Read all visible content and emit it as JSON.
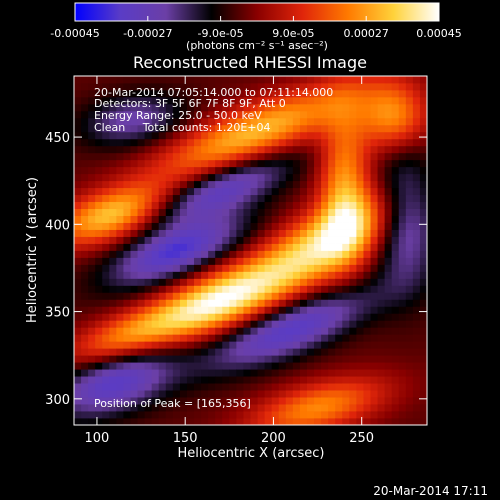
{
  "colorbar": {
    "ticks": [
      "-0.00045",
      "-0.00027",
      "-9.0e-05",
      "9.0e-05",
      "0.00027",
      "0.00045"
    ],
    "label": "(photons cm⁻² s⁻¹ asec⁻²)",
    "stops": [
      "#0000ff",
      "#5a3cc6",
      "#6b3fa6",
      "#000000",
      "#8a0000",
      "#e0250a",
      "#ff7a00",
      "#ffd23a",
      "#ffffff"
    ]
  },
  "chart_data": {
    "type": "heatmap",
    "title": "Reconstructed RHESSI Image",
    "xlabel": "Heliocentric X (arcsec)",
    "ylabel": "Heliocentric Y (arcsec)",
    "xlim": [
      87,
      287
    ],
    "ylim": [
      285,
      485
    ],
    "xticks": [
      100,
      150,
      200,
      250
    ],
    "yticks": [
      300,
      350,
      400,
      450
    ],
    "zlim": [
      -0.00045,
      0.00045
    ],
    "peak": [
      165,
      356
    ],
    "sources": [
      {
        "x": 168,
        "y": 356,
        "amp": 0.00045,
        "sx": 30,
        "sy": 11,
        "angle": 22
      },
      {
        "x": 230,
        "y": 390,
        "amp": 0.0004,
        "sx": 32,
        "sy": 13,
        "angle": 30
      },
      {
        "x": 108,
        "y": 405,
        "amp": 0.00036,
        "sx": 24,
        "sy": 10,
        "angle": 18
      },
      {
        "x": 190,
        "y": 453,
        "amp": 0.00035,
        "sx": 42,
        "sy": 11,
        "angle": 22
      },
      {
        "x": 268,
        "y": 462,
        "amp": 0.0003,
        "sx": 14,
        "sy": 14,
        "angle": 0
      },
      {
        "x": 115,
        "y": 335,
        "amp": 0.00025,
        "sx": 25,
        "sy": 9,
        "angle": 20
      },
      {
        "x": 225,
        "y": 295,
        "amp": 0.00028,
        "sx": 28,
        "sy": 10,
        "angle": 15
      },
      {
        "x": 240,
        "y": 425,
        "amp": 0.00028,
        "sx": 10,
        "sy": 30,
        "angle": 0
      },
      {
        "x": 145,
        "y": 385,
        "amp": -0.00032,
        "sx": 28,
        "sy": 10,
        "angle": 22
      },
      {
        "x": 210,
        "y": 340,
        "amp": -0.0003,
        "sx": 35,
        "sy": 10,
        "angle": 22
      },
      {
        "x": 170,
        "y": 420,
        "amp": -0.00028,
        "sx": 30,
        "sy": 9,
        "angle": 22
      },
      {
        "x": 110,
        "y": 310,
        "amp": -0.0003,
        "sx": 25,
        "sy": 12,
        "angle": 20
      },
      {
        "x": 275,
        "y": 405,
        "amp": -0.00025,
        "sx": 12,
        "sy": 28,
        "angle": 0
      },
      {
        "x": 120,
        "y": 460,
        "amp": -0.0002,
        "sx": 20,
        "sy": 10,
        "angle": 10
      }
    ],
    "annotations": [
      "20-Mar-2014 07:05:14.000 to 07:11:14.000",
      "Detectors: 3F 5F 6F 7F 8F 9F, Att 0",
      "Energy Range: 25.0 - 50.0 keV",
      "Clean     Total counts: 1.20E+04"
    ],
    "peak_label": "Position of Peak = [165,356]"
  },
  "footer": {
    "timestamp": "20-Mar-2014 17:11"
  }
}
